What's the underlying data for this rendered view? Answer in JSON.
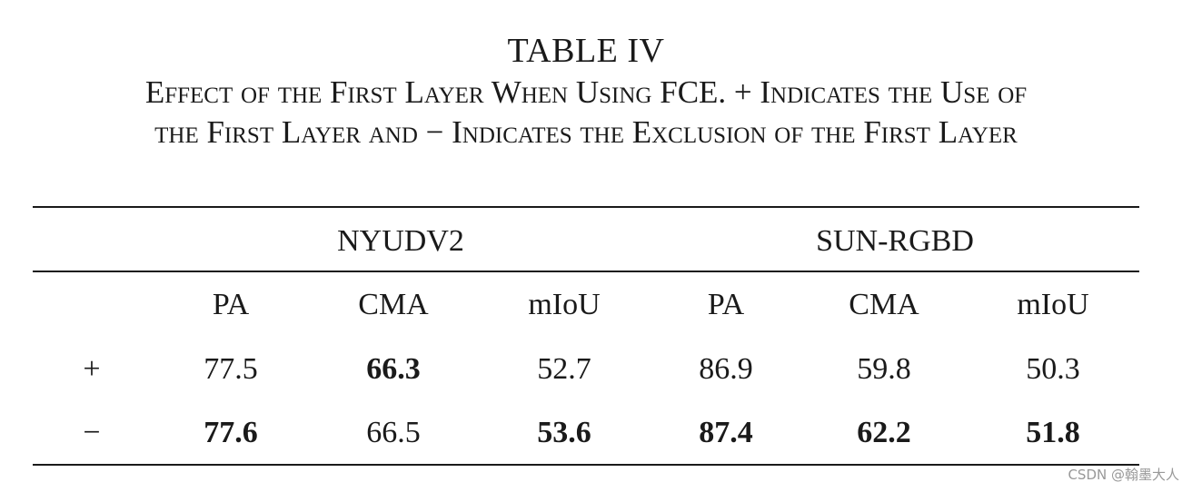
{
  "table": {
    "number": "TABLE IV",
    "caption_line_1": "Effect of the First Layer When Using FCE. + Indicates the Use of",
    "caption_line_2": "the First Layer and − Indicates the Exclusion of the First Layer",
    "groups": [
      "NYUDV2",
      "SUN-RGBD"
    ],
    "columns": [
      "PA",
      "CMA",
      "mIoU",
      "PA",
      "CMA",
      "mIoU"
    ],
    "rows": [
      {
        "label": "+",
        "values": [
          "77.5",
          "66.3",
          "52.7",
          "86.9",
          "59.8",
          "50.3"
        ],
        "bold": [
          false,
          true,
          false,
          false,
          false,
          false
        ]
      },
      {
        "label": "−",
        "values": [
          "77.6",
          "66.5",
          "53.6",
          "87.4",
          "62.2",
          "51.8"
        ],
        "bold": [
          true,
          false,
          true,
          true,
          true,
          true
        ]
      }
    ]
  },
  "watermark": "CSDN @翰墨大人"
}
